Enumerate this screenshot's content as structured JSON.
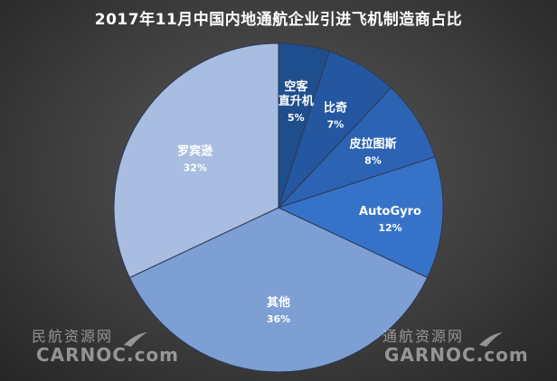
{
  "title": "2017年11月中国内地通航企业引进飞机制造商占比",
  "watermarks": {
    "left_cn": "民航资源网",
    "left_en": "CARNOC.com",
    "right_cn": "通航资源网",
    "right_en": "GARNOC.com"
  },
  "chart_data": {
    "type": "pie",
    "title": "2017年11月中国内地通航企业引进飞机制造商占比",
    "start_angle": "12 o'clock, clockwise",
    "slices": [
      {
        "name": "空客直升机",
        "label_lines": [
          "空客",
          "直升机"
        ],
        "value": 5,
        "pct_label": "5%",
        "color": "#1f4e8c"
      },
      {
        "name": "比奇",
        "label_lines": [
          "比奇"
        ],
        "value": 7,
        "pct_label": "7%",
        "color": "#2457a0"
      },
      {
        "name": "皮拉图斯",
        "label_lines": [
          "皮拉图斯"
        ],
        "value": 8,
        "pct_label": "8%",
        "color": "#2c63b3"
      },
      {
        "name": "AutoGyro",
        "label_lines": [
          "AutoGyro"
        ],
        "value": 12,
        "pct_label": "12%",
        "color": "#3673c8"
      },
      {
        "name": "其他",
        "label_lines": [
          "其他"
        ],
        "value": 36,
        "pct_label": "36%",
        "color": "#7d9fd3"
      },
      {
        "name": "罗宾逊",
        "label_lines": [
          "罗宾逊"
        ],
        "value": 32,
        "pct_label": "32%",
        "color": "#a8bde0"
      }
    ]
  }
}
